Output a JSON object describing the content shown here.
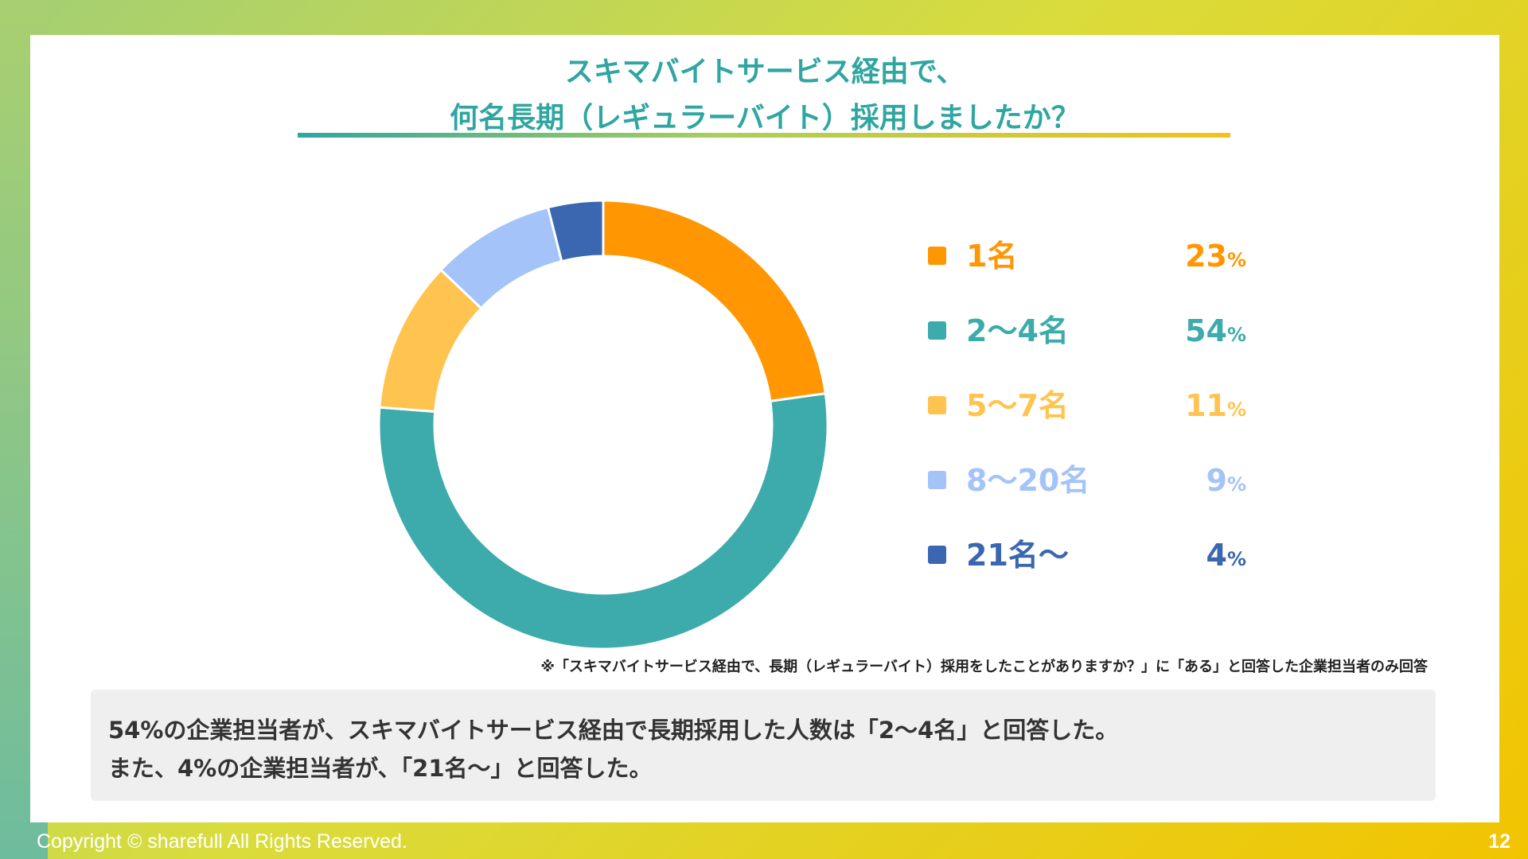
{
  "title_line1": "スキマバイトサービス経由で、",
  "title_line2": "何名長期（レギュラーバイト）採用しましたか？",
  "chart_data": {
    "type": "pie",
    "style": "donut",
    "categories": [
      "1名",
      "2～4名",
      "5～7名",
      "8～20名",
      "21名～"
    ],
    "values": [
      23,
      54,
      11,
      9,
      4
    ],
    "value_suffix": "%",
    "colors": [
      "#ff9602",
      "#3dabab",
      "#ffc44f",
      "#a4c3f8",
      "#3a67b0"
    ],
    "legend_position": "right"
  },
  "note": "※「スキマバイトサービス経由で、長期（レギュラーバイト）採用をしたことがありますか？」に「ある」と回答した企業担当者のみ回答",
  "summary": {
    "line1": "54%の企業担当者が、スキマバイトサービス経由で長期採用した人数は「2～4名」と回答した。",
    "line2": "また、4%の企業担当者が、「21名～」と回答した。"
  },
  "footer": {
    "copyright": "Copyright © sharefull All Rights Reserved.",
    "page_number": "12"
  }
}
